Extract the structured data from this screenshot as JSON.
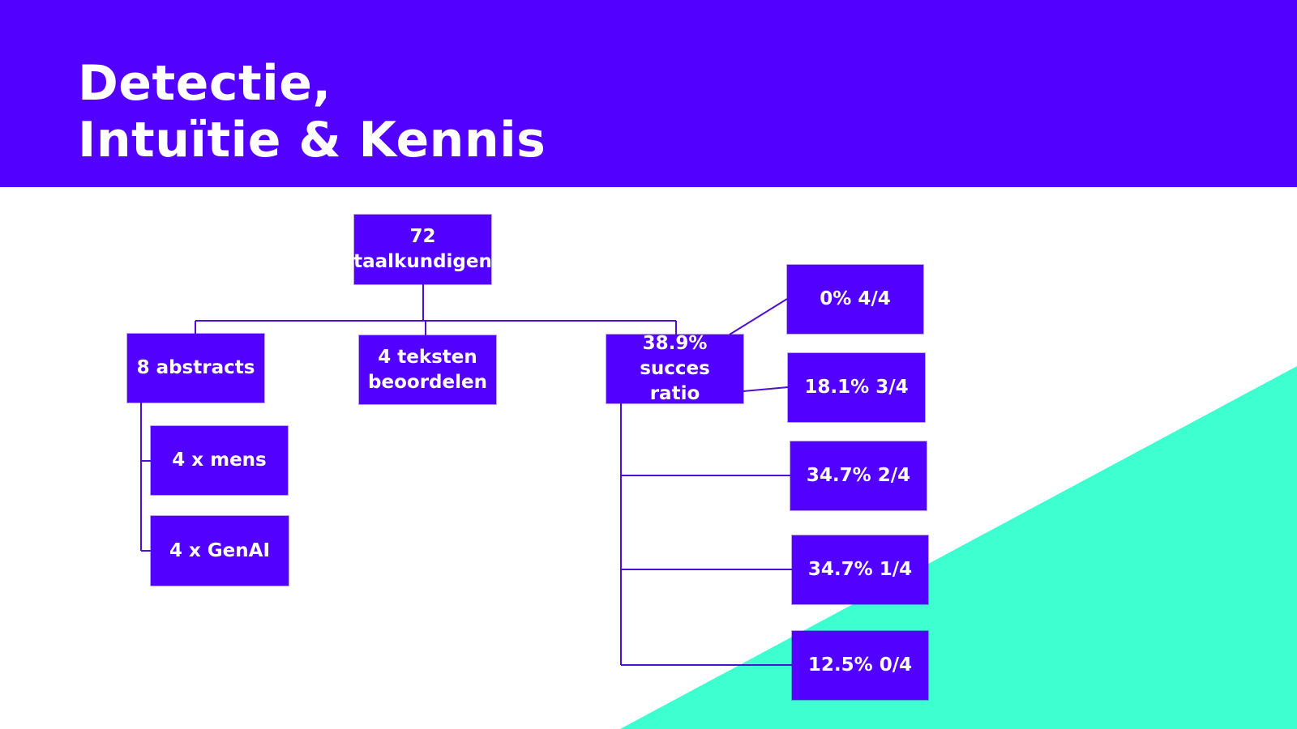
{
  "slide": {
    "title_line1": "Detectie,",
    "title_line2": "Intuïtie & Kennis"
  },
  "colors": {
    "primary": "#5200ff",
    "accent": "#3dffd0",
    "connector": "#4b0fd6",
    "background": "#ffffff"
  },
  "diagram": {
    "root": "72\ntaalkundigen",
    "branches": {
      "abstracts": "8 abstracts",
      "teksten": "4 teksten\nbeoordelen",
      "succes": "38.9% succes\nratio"
    },
    "abstract_children": {
      "mens": "4 x mens",
      "genai": "4 x GenAI"
    },
    "succes_children": {
      "four": "0% 4/4",
      "three": "18.1% 3/4",
      "two": "34.7% 2/4",
      "one": "34.7% 1/4",
      "zero": "12.5% 0/4"
    }
  }
}
